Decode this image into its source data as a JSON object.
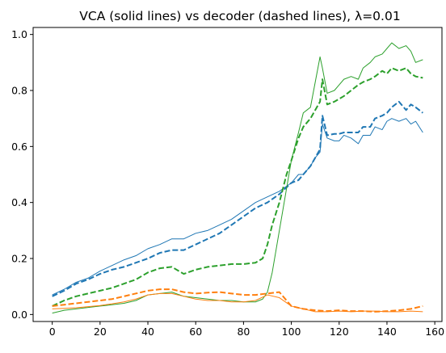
{
  "chart_data": {
    "type": "line",
    "title": "VCA (solid lines) vs decoder (dashed lines), λ=0.01",
    "xlabel": "",
    "ylabel": "",
    "xlim": [
      -8,
      163
    ],
    "ylim": [
      -0.025,
      1.025
    ],
    "xticks": [
      0,
      20,
      40,
      60,
      80,
      100,
      120,
      140,
      160
    ],
    "yticks": [
      0.0,
      0.2,
      0.4,
      0.6,
      0.8,
      1.0
    ],
    "xtick_labels": [
      "0",
      "20",
      "40",
      "60",
      "80",
      "100",
      "120",
      "140",
      "160"
    ],
    "ytick_labels": [
      "0.0",
      "0.2",
      "0.4",
      "0.6",
      "0.8",
      "1.0"
    ],
    "grid": false,
    "series": [
      {
        "color": "#1f77b4",
        "style": "solid",
        "x": [
          0,
          5,
          10,
          15,
          20,
          25,
          30,
          35,
          40,
          45,
          50,
          55,
          60,
          65,
          70,
          75,
          80,
          85,
          90,
          95,
          100,
          103,
          105,
          108,
          110,
          112,
          113,
          115,
          118,
          120,
          122,
          125,
          128,
          130,
          133,
          135,
          138,
          140,
          142,
          145,
          148,
          150,
          152,
          155
        ],
        "y": [
          0.07,
          0.09,
          0.115,
          0.13,
          0.155,
          0.175,
          0.195,
          0.21,
          0.235,
          0.25,
          0.27,
          0.27,
          0.29,
          0.3,
          0.32,
          0.34,
          0.37,
          0.4,
          0.42,
          0.44,
          0.47,
          0.5,
          0.5,
          0.53,
          0.56,
          0.58,
          0.68,
          0.63,
          0.62,
          0.62,
          0.64,
          0.63,
          0.61,
          0.64,
          0.64,
          0.67,
          0.66,
          0.69,
          0.7,
          0.69,
          0.7,
          0.68,
          0.69,
          0.65
        ]
      },
      {
        "color": "#1f77b4",
        "style": "dashed",
        "x": [
          0,
          5,
          10,
          15,
          20,
          25,
          30,
          35,
          40,
          45,
          50,
          55,
          60,
          65,
          70,
          75,
          80,
          85,
          90,
          95,
          100,
          103,
          105,
          108,
          110,
          112,
          113,
          115,
          118,
          120,
          122,
          125,
          128,
          130,
          133,
          135,
          138,
          140,
          142,
          145,
          148,
          150,
          152,
          155
        ],
        "y": [
          0.065,
          0.085,
          0.11,
          0.125,
          0.145,
          0.16,
          0.17,
          0.185,
          0.2,
          0.22,
          0.23,
          0.23,
          0.25,
          0.27,
          0.29,
          0.32,
          0.35,
          0.38,
          0.4,
          0.43,
          0.47,
          0.48,
          0.5,
          0.53,
          0.56,
          0.59,
          0.71,
          0.64,
          0.645,
          0.645,
          0.65,
          0.65,
          0.65,
          0.67,
          0.67,
          0.7,
          0.71,
          0.72,
          0.74,
          0.76,
          0.73,
          0.75,
          0.74,
          0.72
        ]
      },
      {
        "color": "#2ca02c",
        "style": "solid",
        "x": [
          0,
          5,
          10,
          15,
          20,
          25,
          30,
          35,
          40,
          45,
          50,
          55,
          60,
          65,
          70,
          75,
          80,
          85,
          88,
          90,
          92,
          95,
          98,
          100,
          103,
          105,
          108,
          110,
          112,
          113,
          115,
          118,
          120,
          122,
          125,
          128,
          130,
          133,
          135,
          138,
          140,
          142,
          145,
          148,
          150,
          152,
          155
        ],
        "y": [
          0.005,
          0.015,
          0.02,
          0.025,
          0.03,
          0.035,
          0.04,
          0.05,
          0.07,
          0.075,
          0.08,
          0.065,
          0.06,
          0.055,
          0.05,
          0.05,
          0.045,
          0.045,
          0.055,
          0.08,
          0.15,
          0.3,
          0.45,
          0.55,
          0.65,
          0.72,
          0.74,
          0.83,
          0.92,
          0.88,
          0.79,
          0.8,
          0.82,
          0.84,
          0.85,
          0.84,
          0.88,
          0.9,
          0.92,
          0.93,
          0.95,
          0.97,
          0.95,
          0.96,
          0.94,
          0.9,
          0.91
        ]
      },
      {
        "color": "#2ca02c",
        "style": "dashed",
        "x": [
          0,
          5,
          10,
          15,
          20,
          25,
          30,
          35,
          40,
          45,
          50,
          55,
          60,
          65,
          70,
          75,
          80,
          85,
          88,
          90,
          92,
          95,
          98,
          100,
          103,
          105,
          108,
          110,
          112,
          113,
          115,
          118,
          120,
          122,
          125,
          128,
          130,
          133,
          135,
          138,
          140,
          142,
          145,
          148,
          150,
          152,
          155
        ],
        "y": [
          0.03,
          0.05,
          0.065,
          0.075,
          0.085,
          0.095,
          0.11,
          0.125,
          0.15,
          0.165,
          0.17,
          0.145,
          0.16,
          0.17,
          0.175,
          0.18,
          0.18,
          0.185,
          0.2,
          0.25,
          0.32,
          0.4,
          0.5,
          0.55,
          0.63,
          0.67,
          0.7,
          0.73,
          0.76,
          0.84,
          0.75,
          0.76,
          0.77,
          0.78,
          0.8,
          0.82,
          0.83,
          0.84,
          0.85,
          0.87,
          0.86,
          0.88,
          0.87,
          0.88,
          0.86,
          0.85,
          0.845
        ]
      },
      {
        "color": "#ff7f0e",
        "style": "solid",
        "x": [
          0,
          5,
          10,
          15,
          20,
          25,
          30,
          35,
          40,
          45,
          50,
          55,
          60,
          65,
          70,
          75,
          80,
          85,
          90,
          95,
          100,
          105,
          110,
          115,
          120,
          125,
          130,
          135,
          140,
          145,
          150,
          155
        ],
        "y": [
          0.02,
          0.022,
          0.024,
          0.028,
          0.032,
          0.038,
          0.045,
          0.055,
          0.07,
          0.075,
          0.075,
          0.065,
          0.055,
          0.05,
          0.05,
          0.045,
          0.045,
          0.05,
          0.07,
          0.06,
          0.03,
          0.02,
          0.01,
          0.01,
          0.012,
          0.01,
          0.012,
          0.012,
          0.01,
          0.01,
          0.012,
          0.01
        ]
      },
      {
        "color": "#ff7f0e",
        "style": "dashed",
        "x": [
          0,
          5,
          10,
          15,
          20,
          25,
          30,
          35,
          40,
          45,
          50,
          55,
          60,
          65,
          70,
          75,
          80,
          85,
          90,
          95,
          100,
          105,
          110,
          115,
          120,
          125,
          130,
          135,
          140,
          145,
          150,
          155
        ],
        "y": [
          0.03,
          0.035,
          0.04,
          0.045,
          0.05,
          0.055,
          0.065,
          0.075,
          0.085,
          0.09,
          0.09,
          0.08,
          0.075,
          0.078,
          0.08,
          0.075,
          0.07,
          0.07,
          0.075,
          0.08,
          0.03,
          0.02,
          0.015,
          0.012,
          0.015,
          0.012,
          0.012,
          0.01,
          0.012,
          0.015,
          0.02,
          0.03
        ]
      }
    ]
  }
}
